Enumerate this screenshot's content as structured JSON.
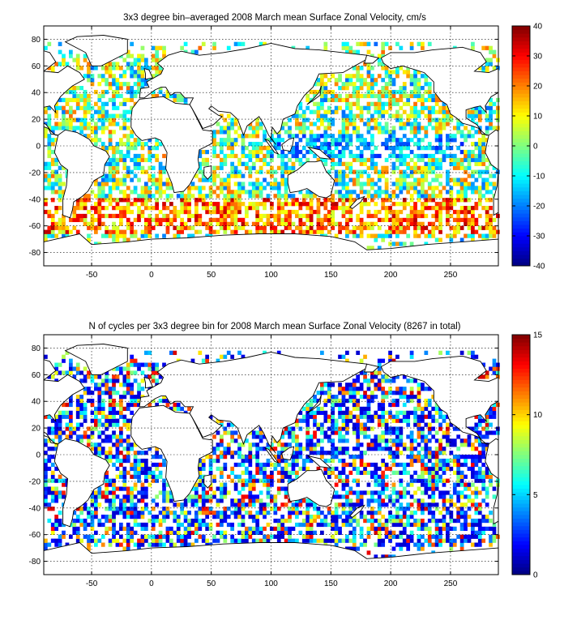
{
  "chart_data": [
    {
      "type": "heatmap",
      "title": "3x3 degree bin–averaged 2008 March mean Surface Zonal Velocity, cm/s",
      "xlabel": "",
      "ylabel": "",
      "xlim": [
        -90,
        290
      ],
      "ylim": [
        -90,
        90
      ],
      "xticks": [
        -50,
        0,
        50,
        100,
        150,
        200,
        250
      ],
      "yticks": [
        80,
        60,
        40,
        20,
        0,
        -20,
        -40,
        -60,
        -80
      ],
      "bin_size_deg": 3,
      "grid": true,
      "colorbar": {
        "min": -40,
        "max": 40,
        "ticks": [
          40,
          30,
          20,
          10,
          0,
          -10,
          -20,
          -30,
          -40
        ],
        "colormap": "jet",
        "placement": "right"
      }
    },
    {
      "type": "heatmap",
      "title": "N of cycles per 3x3 degree bin for 2008 March mean Surface Zonal Velocity (8267 in total)",
      "xlabel": "",
      "ylabel": "",
      "xlim": [
        -90,
        290
      ],
      "ylim": [
        -90,
        90
      ],
      "xticks": [
        -50,
        0,
        50,
        100,
        150,
        200,
        250
      ],
      "yticks": [
        80,
        60,
        40,
        20,
        0,
        -20,
        -40,
        -60,
        -80
      ],
      "bin_size_deg": 3,
      "grid": true,
      "colorbar": {
        "min": 0,
        "max": 15,
        "ticks": [
          15,
          10,
          5,
          0
        ],
        "colormap": "jet",
        "placement": "right"
      }
    }
  ]
}
